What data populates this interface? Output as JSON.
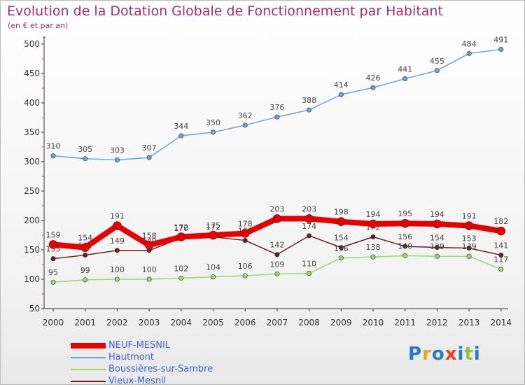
{
  "title": "Evolution de la Dotation Globale de Fonctionnement par Habitant",
  "subtitle": "(en € et par an)",
  "logo": {
    "text": "Proxiti",
    "colors": [
      "#2a78c8",
      "#f0a020",
      "#2a78c8",
      "#e8401c",
      "#2a78c8",
      "#8cc63f",
      "#2a78c8"
    ]
  },
  "chart_data": {
    "type": "line",
    "x": [
      "2000",
      "2001",
      "2002",
      "2003",
      "2004",
      "2005",
      "2006",
      "2007",
      "2008",
      "2009",
      "2010",
      "2011",
      "2012",
      "2013",
      "2014"
    ],
    "ylim": [
      50,
      500
    ],
    "yticks": [
      50,
      100,
      150,
      200,
      250,
      300,
      350,
      400,
      450,
      500
    ],
    "grid": false,
    "legend_position": "bottom-left",
    "series": [
      {
        "name": "Hautmont",
        "color": "#6aa4d6",
        "values": [
          310,
          305,
          303,
          307,
          344,
          350,
          362,
          376,
          388,
          414,
          426,
          441,
          455,
          484,
          491
        ]
      },
      {
        "name": "Vieux-Mesnil",
        "color": "#6b1f1f",
        "values": [
          135,
          141,
          149,
          149,
          170,
          172,
          166,
          142,
          174,
          154,
          172,
          156,
          154,
          153,
          141
        ]
      },
      {
        "name": "Boussières-sur-Sambre",
        "color": "#9ed86a",
        "values": [
          95,
          99,
          100,
          100,
          102,
          104,
          106,
          109,
          110,
          136,
          138,
          140,
          139,
          139,
          117
        ]
      },
      {
        "name": "NEUF-MESNIL",
        "color": "#e80000",
        "values": [
          159,
          154,
          191,
          158,
          172,
          175,
          178,
          203,
          203,
          198,
          194,
          195,
          194,
          191,
          182
        ]
      }
    ],
    "legend_order": [
      "NEUF-MESNIL",
      "Hautmont",
      "Boussières-sur-Sambre",
      "Vieux-Mesnil"
    ]
  }
}
